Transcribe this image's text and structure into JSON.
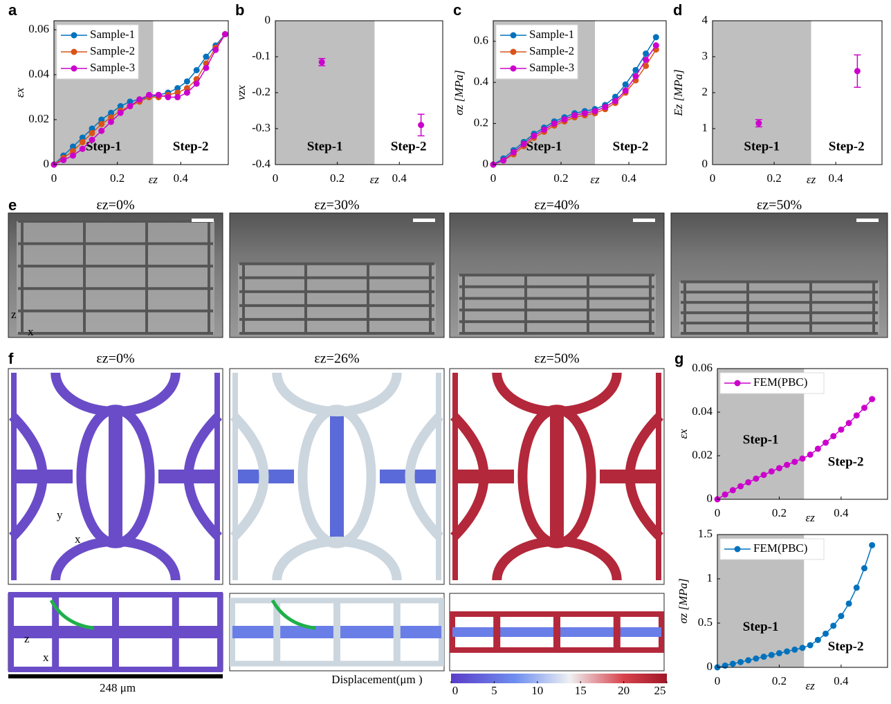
{
  "panel_labels": [
    "a",
    "b",
    "c",
    "d",
    "e",
    "f",
    "g"
  ],
  "chart_data": [
    {
      "type": "line",
      "ylabel": "εx",
      "xlabel": "εz",
      "xlim": [
        0,
        0.55
      ],
      "ylim": [
        0,
        0.064
      ],
      "xticks": [
        0,
        0.2,
        0.4
      ],
      "yticks": [
        0,
        0.02,
        0.04,
        0.06
      ],
      "shade_xlim": [
        0,
        0.313
      ],
      "legend": "upper left",
      "annotations": [
        "Step-1",
        "Step-2"
      ],
      "x": [
        0,
        0.03,
        0.06,
        0.09,
        0.12,
        0.15,
        0.18,
        0.21,
        0.24,
        0.27,
        0.3,
        0.33,
        0.36,
        0.39,
        0.42,
        0.45,
        0.48,
        0.51,
        0.54
      ],
      "series": [
        {
          "name": "Sample-1",
          "color": "#0072bd",
          "values": [
            0,
            0.004,
            0.008,
            0.012,
            0.016,
            0.02,
            0.023,
            0.026,
            0.028,
            0.029,
            0.03,
            0.031,
            0.032,
            0.034,
            0.037,
            0.042,
            0.048,
            0.053,
            0.058
          ]
        },
        {
          "name": "Sample-2",
          "color": "#d95319",
          "values": [
            0,
            0.003,
            0.006,
            0.01,
            0.014,
            0.018,
            0.021,
            0.024,
            0.026,
            0.028,
            0.03,
            0.03,
            0.031,
            0.032,
            0.034,
            0.038,
            0.045,
            0.052,
            0.058
          ]
        },
        {
          "name": "Sample-3",
          "color": "#cc00cc",
          "values": [
            0,
            0.002,
            0.004,
            0.007,
            0.011,
            0.015,
            0.019,
            0.023,
            0.026,
            0.029,
            0.031,
            0.031,
            0.03,
            0.03,
            0.032,
            0.036,
            0.043,
            0.051,
            0.058
          ]
        }
      ]
    },
    {
      "type": "errorbar",
      "ylabel": "νzx",
      "xlabel": "εz",
      "xlim": [
        0,
        0.54
      ],
      "ylim": [
        -0.4,
        0
      ],
      "xticks": [
        0,
        0.2,
        0.4
      ],
      "yticks": [
        -0.4,
        -0.3,
        -0.2,
        -0.1,
        0
      ],
      "shade_xlim": [
        0,
        0.32
      ],
      "annotations": [
        "Step-1",
        "Step-2"
      ],
      "x": [
        0.15,
        0.47
      ],
      "series": [
        {
          "color": "#cc00cc",
          "values": [
            -0.115,
            -0.29
          ],
          "errors": [
            0.01,
            0.03
          ]
        }
      ]
    },
    {
      "type": "line",
      "ylabel": "σz [MPa]",
      "xlabel": "εz",
      "xlim": [
        0,
        0.51
      ],
      "ylim": [
        0,
        0.7
      ],
      "xticks": [
        0,
        0.2,
        0.4
      ],
      "yticks": [
        0,
        0.2,
        0.4,
        0.6
      ],
      "shade_xlim": [
        0,
        0.3
      ],
      "legend": "upper left",
      "annotations": [
        "Step-1",
        "Step-2"
      ],
      "x": [
        0,
        0.03,
        0.06,
        0.09,
        0.12,
        0.15,
        0.18,
        0.21,
        0.24,
        0.27,
        0.3,
        0.33,
        0.36,
        0.39,
        0.42,
        0.45,
        0.48
      ],
      "series": [
        {
          "name": "Sample-1",
          "color": "#0072bd",
          "values": [
            0,
            0.03,
            0.07,
            0.11,
            0.15,
            0.18,
            0.21,
            0.23,
            0.25,
            0.26,
            0.27,
            0.29,
            0.33,
            0.39,
            0.46,
            0.54,
            0.62
          ]
        },
        {
          "name": "Sample-2",
          "color": "#d95319",
          "values": [
            0,
            0.02,
            0.05,
            0.09,
            0.13,
            0.16,
            0.19,
            0.21,
            0.23,
            0.24,
            0.25,
            0.27,
            0.3,
            0.35,
            0.41,
            0.48,
            0.56
          ]
        },
        {
          "name": "Sample-3",
          "color": "#cc00cc",
          "values": [
            0,
            0.02,
            0.06,
            0.1,
            0.14,
            0.17,
            0.2,
            0.22,
            0.24,
            0.25,
            0.26,
            0.28,
            0.31,
            0.36,
            0.43,
            0.51,
            0.58
          ]
        }
      ]
    },
    {
      "type": "errorbar",
      "ylabel": "Ez [MPa]",
      "xlabel": "εz",
      "xlim": [
        0,
        0.55
      ],
      "ylim": [
        0,
        4
      ],
      "xticks": [
        0,
        0.2,
        0.4
      ],
      "yticks": [
        0,
        1,
        2,
        3,
        4
      ],
      "shade_xlim": [
        0,
        0.32
      ],
      "annotations": [
        "Step-1",
        "Step-2"
      ],
      "x": [
        0.15,
        0.47
      ],
      "series": [
        {
          "color": "#cc00cc",
          "values": [
            1.15,
            2.6
          ],
          "errors": [
            0.1,
            0.45
          ]
        }
      ]
    },
    {
      "type": "line",
      "ylabel": "εx",
      "xlabel": "εz",
      "xlim": [
        0,
        0.55
      ],
      "ylim": [
        0,
        0.06
      ],
      "xticks": [
        0,
        0.2,
        0.4
      ],
      "yticks": [
        0,
        0.02,
        0.04,
        0.06
      ],
      "shade_xlim": [
        0,
        0.28
      ],
      "legend": "upper left",
      "annotations": [
        "Step-1",
        "Step-2"
      ],
      "x": [
        0,
        0.025,
        0.05,
        0.075,
        0.1,
        0.125,
        0.15,
        0.175,
        0.2,
        0.225,
        0.25,
        0.275,
        0.3,
        0.325,
        0.35,
        0.375,
        0.4,
        0.425,
        0.45,
        0.475,
        0.5
      ],
      "series": [
        {
          "name": "FEM(PBC)",
          "color": "#cc00cc",
          "values": [
            0,
            0.0022,
            0.0042,
            0.006,
            0.0078,
            0.0095,
            0.0112,
            0.0128,
            0.0143,
            0.0158,
            0.0172,
            0.0187,
            0.0205,
            0.0232,
            0.026,
            0.029,
            0.032,
            0.035,
            0.0385,
            0.042,
            0.046
          ]
        }
      ]
    },
    {
      "type": "line",
      "ylabel": "σz [MPa]",
      "xlabel": "εz",
      "xlim": [
        0,
        0.55
      ],
      "ylim": [
        0,
        1.5
      ],
      "xticks": [
        0,
        0.2,
        0.4
      ],
      "yticks": [
        0,
        0.5,
        1,
        1.5
      ],
      "shade_xlim": [
        0,
        0.28
      ],
      "legend": "upper left",
      "annotations": [
        "Step-1",
        "Step-2"
      ],
      "x": [
        0,
        0.025,
        0.05,
        0.075,
        0.1,
        0.125,
        0.15,
        0.175,
        0.2,
        0.225,
        0.25,
        0.275,
        0.3,
        0.325,
        0.35,
        0.375,
        0.4,
        0.425,
        0.45,
        0.475,
        0.5
      ],
      "series": [
        {
          "name": "FEM(PBC)",
          "color": "#0072bd",
          "values": [
            0,
            0.02,
            0.04,
            0.06,
            0.08,
            0.1,
            0.12,
            0.14,
            0.16,
            0.18,
            0.2,
            0.22,
            0.25,
            0.31,
            0.38,
            0.47,
            0.58,
            0.72,
            0.9,
            1.12,
            1.38
          ]
        }
      ]
    }
  ],
  "panel_e": {
    "titles": [
      "εz=0%",
      "εz=30%",
      "εz=40%",
      "εz=50%"
    ],
    "axes": [
      "z",
      "x"
    ]
  },
  "panel_f": {
    "titles": [
      "εz=0%",
      "εz=26%",
      "εz=50%"
    ],
    "axes_top": [
      "y",
      "x"
    ],
    "axes_bottom": [
      "z",
      "x"
    ],
    "scale_bar": "248 μm",
    "colorbar": {
      "label": "Displacement(μm )",
      "lim": [
        0,
        25
      ],
      "ticks": [
        0,
        5,
        10,
        15,
        20,
        25
      ]
    }
  }
}
